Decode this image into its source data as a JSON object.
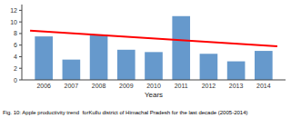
{
  "chart_data": {
    "type": "bar",
    "categories": [
      "2006",
      "2007",
      "2008",
      "2009",
      "2010",
      "2011",
      "2012",
      "2013",
      "2014"
    ],
    "values": [
      7.5,
      3.5,
      7.8,
      5.2,
      4.8,
      11.0,
      4.5,
      3.2,
      5.0
    ],
    "color": "#6699CC",
    "trend": {
      "values": [
        8.5,
        5.8
      ],
      "color": "#FF0000"
    },
    "x_label": "Years",
    "caption": "Fig. 10: Apple productivity trend  forKullu district of Himachal Pradesh for the last decade (2005-2014)",
    "ylim": [
      0,
      13
    ],
    "yticks": [
      0,
      2,
      4,
      6,
      8,
      10,
      12
    ],
    "grid": false
  }
}
